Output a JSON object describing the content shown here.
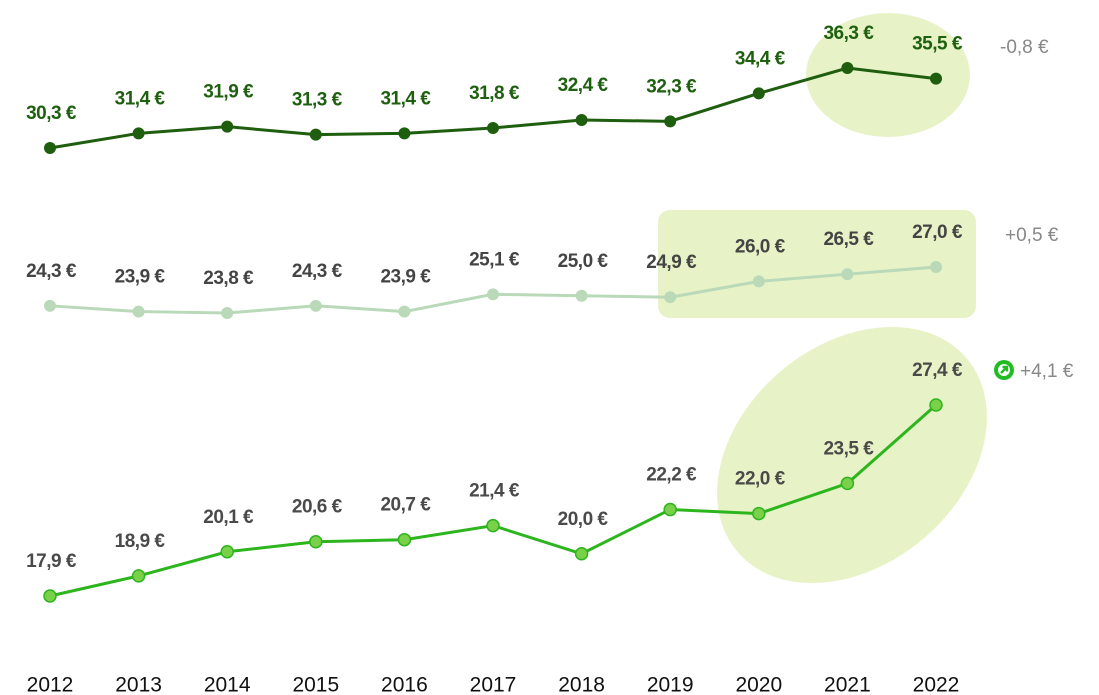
{
  "chart_data": {
    "type": "line",
    "categories": [
      "2012",
      "2013",
      "2014",
      "2015",
      "2016",
      "2017",
      "2018",
      "2019",
      "2020",
      "2021",
      "2022"
    ],
    "series": [
      {
        "color": "#1e5e0e",
        "label_color": "#1e6010",
        "values": [
          30.3,
          31.4,
          31.9,
          31.3,
          31.4,
          31.8,
          32.4,
          32.3,
          34.4,
          36.3,
          35.5
        ],
        "value_labels": [
          "30,3 €",
          "31,4 €",
          "31,9 €",
          "31,3 €",
          "31,4 €",
          "31,8 €",
          "32,4 €",
          "32,3 €",
          "34,4 €",
          "36,3 €",
          "35,5 €"
        ]
      },
      {
        "color": "#b9d9b9",
        "label_color": "#444444",
        "values": [
          24.3,
          23.9,
          23.8,
          24.3,
          23.9,
          25.1,
          25.0,
          24.9,
          26.0,
          26.5,
          27.0
        ],
        "value_labels": [
          "24,3 €",
          "23,9 €",
          "23,8 €",
          "24,3 €",
          "23,9 €",
          "25,1 €",
          "25,0 €",
          "24,9 €",
          "26,0 €",
          "26,5 €",
          "27,0 €"
        ]
      },
      {
        "color": "#2db51e",
        "label_color": "#4a4a4a",
        "values": [
          17.9,
          18.9,
          20.1,
          20.6,
          20.7,
          21.4,
          20.0,
          22.2,
          22.0,
          23.5,
          27.4
        ],
        "value_labels": [
          "17,9 €",
          "18,9 €",
          "20,1 €",
          "20,6 €",
          "20,7 €",
          "21,4 €",
          "20,0 €",
          "22,2 €",
          "22,0 €",
          "23,5 €",
          "27,4 €"
        ]
      }
    ],
    "annotations": [
      "-0,8 €",
      "+0,5 €",
      "+4,1 €"
    ]
  }
}
